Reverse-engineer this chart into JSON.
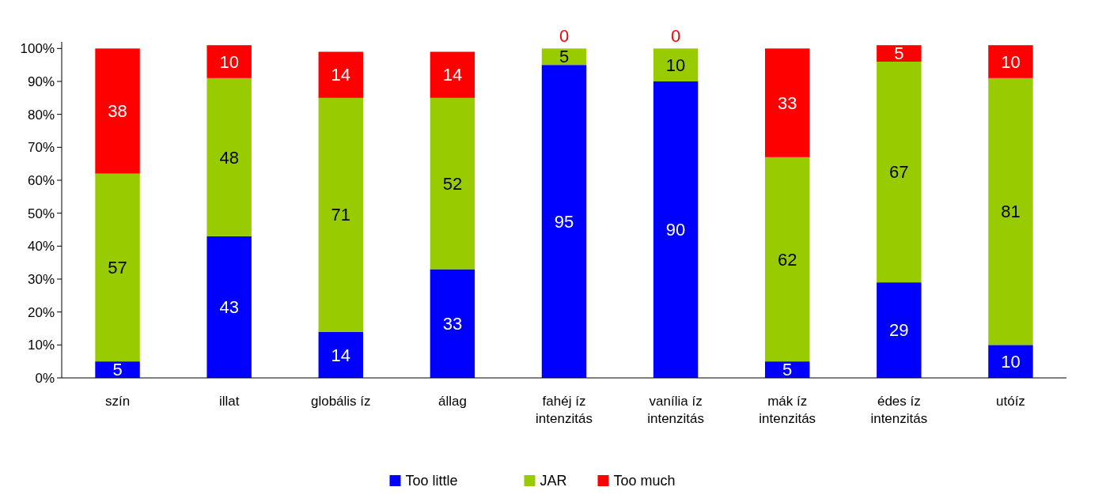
{
  "chart_data": {
    "type": "bar",
    "stacked": true,
    "data_labels": true,
    "legend": "bottom",
    "categories": [
      "szín",
      "illat",
      "globális íz",
      "állag",
      "fahéj íz intenzitás",
      "vanília íz intenzitás",
      "mák íz intenzitás",
      "édes íz intenzitás",
      "utóíz"
    ],
    "series": [
      {
        "name": "Too little",
        "color": "#0000ff",
        "values": [
          5,
          43,
          14,
          33,
          95,
          90,
          5,
          29,
          10
        ]
      },
      {
        "name": "JAR",
        "color": "#99cc00",
        "values": [
          57,
          48,
          71,
          52,
          5,
          10,
          62,
          67,
          81
        ]
      },
      {
        "name": "Too much",
        "color": "#ff0000",
        "values": [
          38,
          10,
          14,
          14,
          0,
          0,
          33,
          5,
          10
        ]
      }
    ],
    "ylim": [
      0,
      102
    ],
    "yticks": [
      {
        "value": 0,
        "label": "0%"
      },
      {
        "value": 10,
        "label": "10%"
      },
      {
        "value": 20,
        "label": "20%"
      },
      {
        "value": 30,
        "label": "30%"
      },
      {
        "value": 40,
        "label": "40%"
      },
      {
        "value": 50,
        "label": "50%"
      },
      {
        "value": 60,
        "label": "60%"
      },
      {
        "value": 70,
        "label": "70%"
      },
      {
        "value": 80,
        "label": "80%"
      },
      {
        "value": 90,
        "label": "90%"
      },
      {
        "value": 100,
        "label": "100%"
      }
    ]
  }
}
